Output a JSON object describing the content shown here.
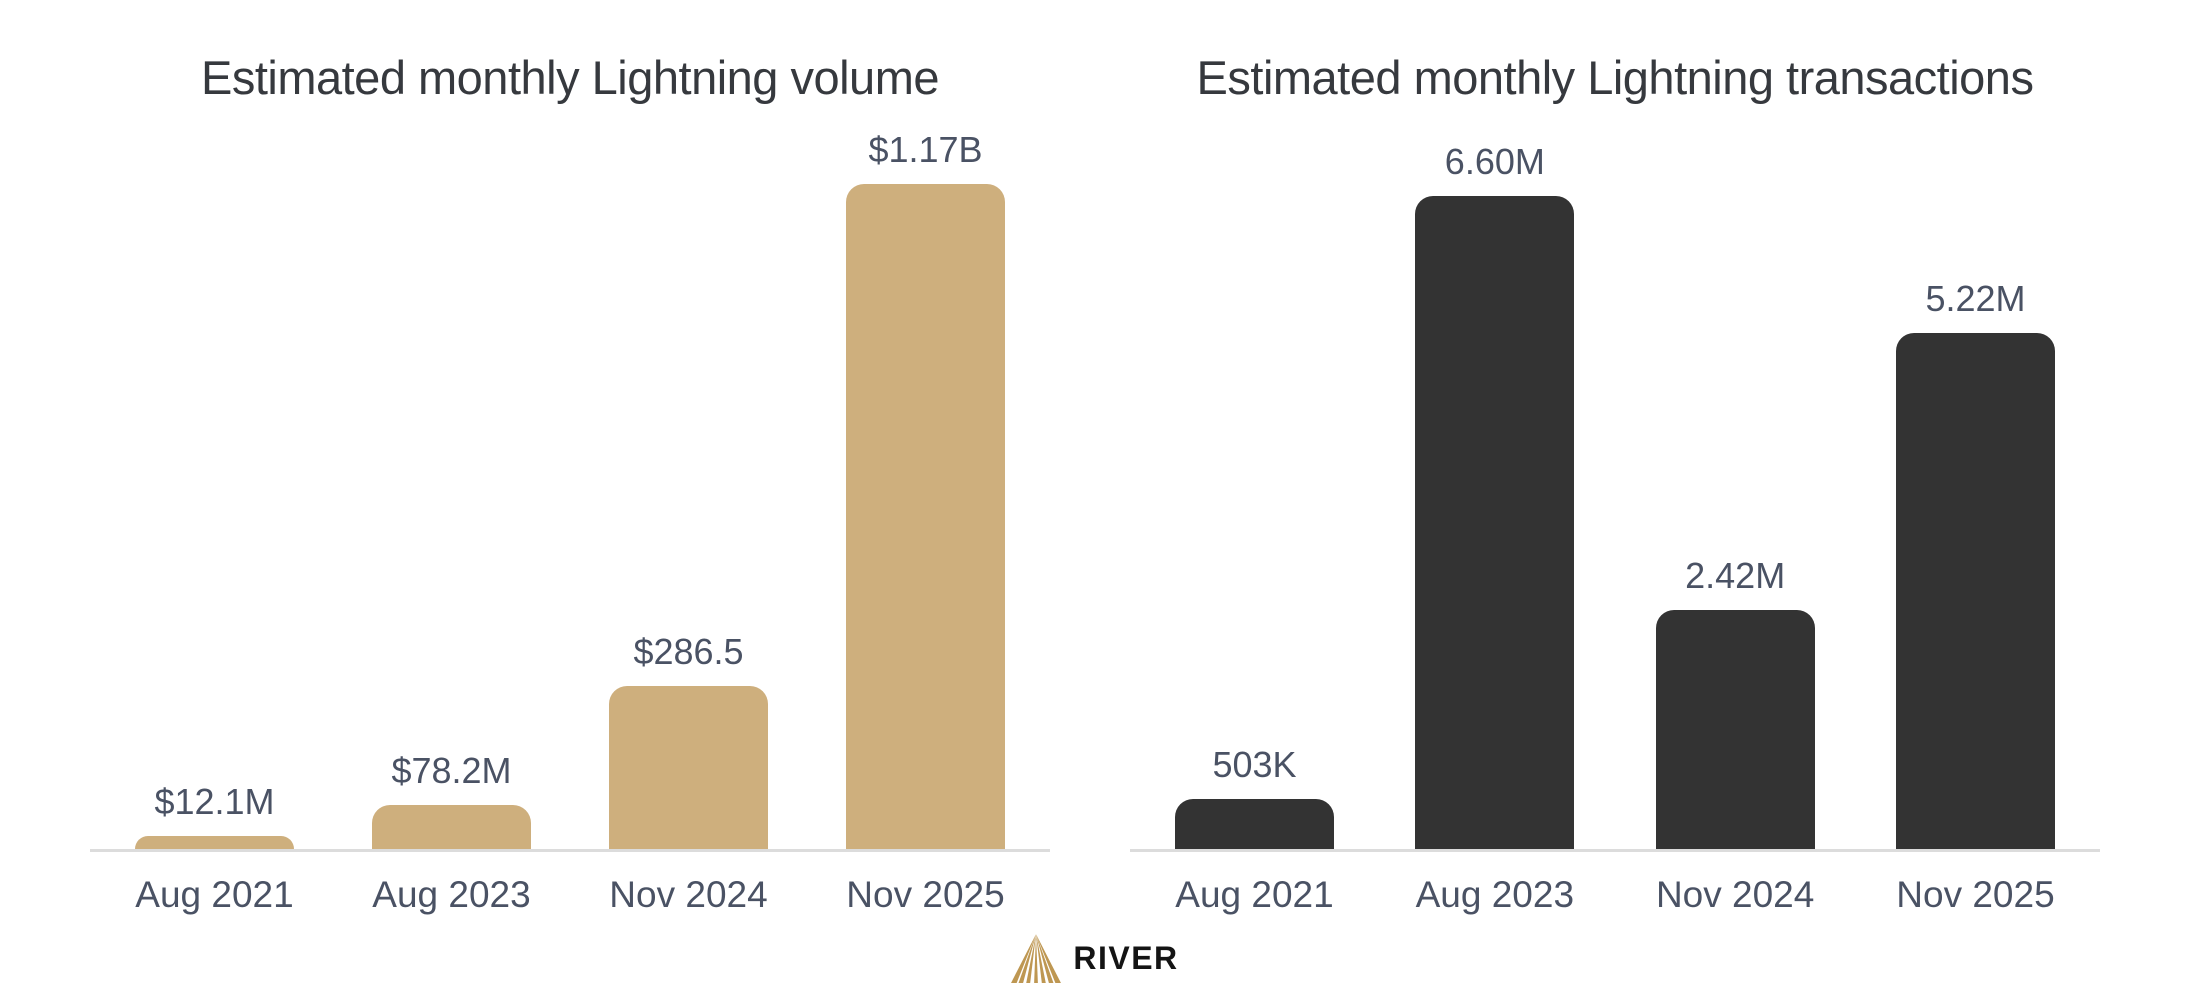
{
  "chart_data": [
    {
      "type": "bar",
      "title": "Estimated monthly Lightning volume",
      "categories": [
        "Aug 2021",
        "Aug 2023",
        "Nov 2024",
        "Nov 2025"
      ],
      "values": [
        12.1,
        78.2,
        286.5,
        1170
      ],
      "values_unit": "USD millions",
      "value_labels": [
        "$12.1M",
        "$78.2M",
        "$286.5",
        "$1.17B"
      ],
      "bar_color": "#CEAF7D",
      "xlabel": "",
      "ylabel": "",
      "grid": false,
      "legend": null
    },
    {
      "type": "bar",
      "title": "Estimated monthly Lightning transactions",
      "categories": [
        "Aug 2021",
        "Aug 2023",
        "Nov 2024",
        "Nov 2025"
      ],
      "values": [
        0.503,
        6.6,
        2.42,
        5.22
      ],
      "values_unit": "millions of transactions",
      "value_labels": [
        "503K",
        "6.60M",
        "2.42M",
        "5.22M"
      ],
      "bar_color": "#333333",
      "xlabel": "",
      "ylabel": "",
      "grid": false,
      "legend": null
    }
  ],
  "style": {
    "title_color": "#36393E",
    "label_color": "#4A5264",
    "baseline_color": "#DCDCDC",
    "logo_gold": "#BE9752"
  },
  "logo": {
    "brand": "RIVER"
  }
}
